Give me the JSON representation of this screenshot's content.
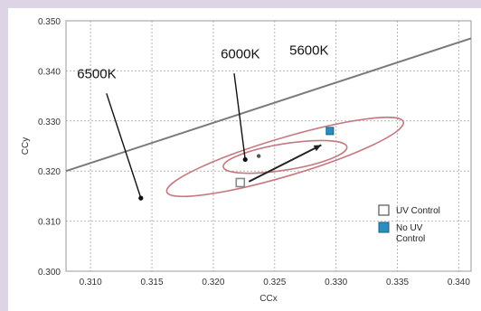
{
  "chart_data": {
    "type": "scatter",
    "title": "",
    "xlabel": "CCx",
    "ylabel": "CCy",
    "xlim": [
      0.308,
      0.341
    ],
    "ylim": [
      0.3,
      0.35
    ],
    "x_ticks": [
      "0.310",
      "0.315",
      "0.320",
      "0.325",
      "0.330",
      "0.335",
      "0.340"
    ],
    "y_ticks": [
      "0.300",
      "0.310",
      "0.320",
      "0.330",
      "0.340",
      "0.350"
    ],
    "grid": true,
    "series": [
      {
        "name": "UV Control",
        "marker": "hollow-square",
        "color": "#888888",
        "points": [
          [
            0.3222,
            0.3177
          ]
        ]
      },
      {
        "name": "No UV Control",
        "marker": "filled-square",
        "color": "#2a8fc0",
        "points": [
          [
            0.3295,
            0.328
          ]
        ]
      }
    ],
    "extra_points": [
      [
        0.3237,
        0.323
      ]
    ],
    "arrow": {
      "from": [
        0.3229,
        0.3179
      ],
      "to": [
        0.3288,
        0.3252
      ],
      "color": "#222222"
    },
    "reference_line": {
      "from": [
        0.308,
        0.32
      ],
      "to": [
        0.341,
        0.3465
      ],
      "color": "#7a7a7a"
    },
    "ellipses": [
      {
        "cx": 0.32585,
        "cy": 0.32283,
        "rx": 0.01005,
        "ry": 0.00382,
        "tilt_deg": -16.5,
        "color": "#c47a80"
      },
      {
        "cx": 0.32585,
        "cy": 0.32283,
        "rx": 0.0051,
        "ry": 0.00262,
        "tilt_deg": -9.2,
        "color": "#c47a80"
      }
    ],
    "annotations": [
      {
        "text": "6500K",
        "label_at": [
          0.3105,
          0.3385
        ],
        "pointer_from": [
          0.3113,
          0.3355
        ],
        "pointer_to": [
          0.3141,
          0.3146
        ]
      },
      {
        "text": "6000K",
        "label_at": [
          0.3222,
          0.3425
        ],
        "pointer_from": [
          0.3217,
          0.3395
        ],
        "pointer_to": [
          0.3226,
          0.3223
        ]
      },
      {
        "text": "5600K",
        "label_at": [
          0.3278,
          0.3432
        ],
        "pointer_from": null,
        "pointer_to": null
      }
    ],
    "legend": {
      "position": "bottom-right",
      "entries": [
        {
          "label_lines": [
            "UV Control"
          ],
          "swatch": "hollow",
          "color": "#555555"
        },
        {
          "label_lines": [
            "No UV",
            "Control"
          ],
          "swatch": "filled",
          "color": "#2a8fc0"
        }
      ]
    }
  }
}
